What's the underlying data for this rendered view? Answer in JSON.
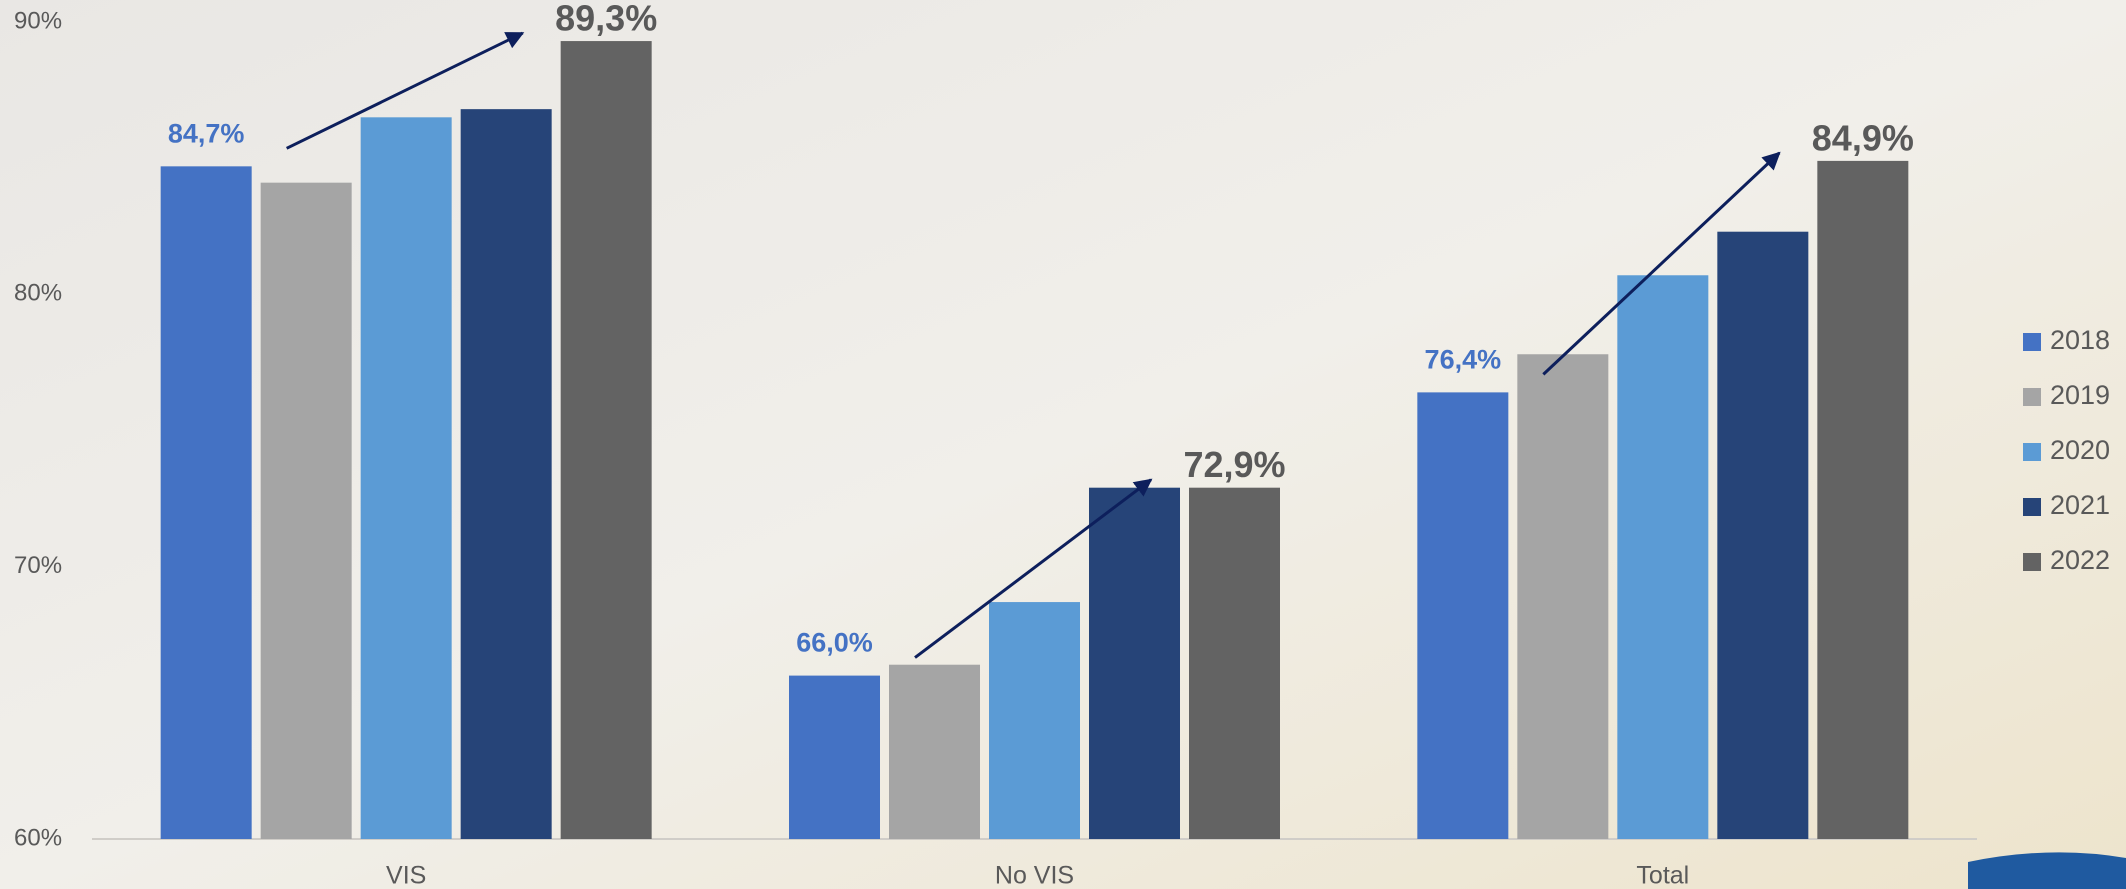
{
  "chart_data": {
    "type": "bar",
    "categories": [
      "VIS",
      "No VIS",
      "Total"
    ],
    "series": [
      {
        "name": "2018",
        "color": "#4472c4",
        "values": [
          84.7,
          66.0,
          76.4
        ],
        "value_labels": [
          "84,7%",
          "66,0%",
          "76,4%"
        ]
      },
      {
        "name": "2019",
        "color": "#a5a5a5",
        "values": [
          84.1,
          66.4,
          77.8
        ]
      },
      {
        "name": "2020",
        "color": "#5b9bd5",
        "values": [
          86.5,
          68.7,
          80.7
        ]
      },
      {
        "name": "2021",
        "color": "#264478",
        "values": [
          86.8,
          72.9,
          82.3
        ]
      },
      {
        "name": "2022",
        "color": "#636363",
        "values": [
          89.3,
          72.9,
          84.9
        ],
        "value_labels": [
          "89,3%",
          "72,9%",
          "84,9%"
        ]
      }
    ],
    "ylim": [
      60,
      90
    ],
    "yticks": [
      {
        "value": 60,
        "label": "60%"
      },
      {
        "value": 70,
        "label": "70%"
      },
      {
        "value": 80,
        "label": "80%"
      },
      {
        "value": 90,
        "label": "90%"
      }
    ],
    "grid": false,
    "legend": "right"
  }
}
